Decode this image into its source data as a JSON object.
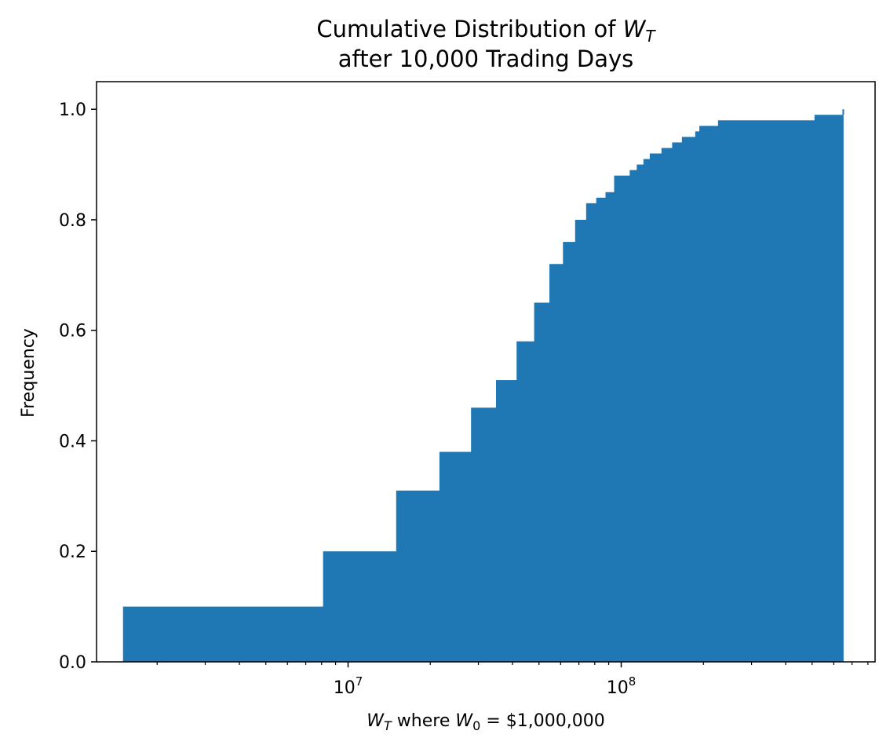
{
  "chart_data": {
    "type": "bar",
    "subtype": "cumulative-histogram",
    "title_parts": {
      "line1_text": "Cumulative Distribution of ",
      "line1_var": "W",
      "line1_sub": "T",
      "line2": "after 10,000 Trading Days"
    },
    "ylabel": "Frequency",
    "xlabel_parts": {
      "var": "W",
      "sub": "T",
      "mid": " where ",
      "var2": "W",
      "sub2": "0",
      "eq": " = $1,000,000"
    },
    "xscale": "log",
    "xlim": [
      1200000,
      850000000
    ],
    "ylim": [
      0,
      1.05
    ],
    "yticks": [
      "0.0",
      "0.2",
      "0.4",
      "0.6",
      "0.8",
      "1.0"
    ],
    "ytick_values": [
      0,
      0.2,
      0.4,
      0.6,
      0.8,
      1.0
    ],
    "xticks": [
      {
        "value": 10000000,
        "base": "10",
        "exp": "7"
      },
      {
        "value": 100000000,
        "base": "10",
        "exp": "8"
      }
    ],
    "bar_color": "#1f77b4",
    "grid": false,
    "bin_edges": [
      1500000,
      8100000,
      15000000,
      21600000,
      28200000,
      34800000,
      41400000,
      48000000,
      54600000,
      61200000,
      67800000,
      74400000,
      81000000,
      87600000,
      94200000,
      100800000,
      107400000,
      114000000,
      120600000,
      127200000,
      133800000,
      140400000,
      147000000,
      153600000,
      160200000,
      166800000,
      173400000,
      180000000,
      186600000,
      193200000,
      199800000,
      206400000,
      226200000,
      510000000,
      650000000
    ],
    "values": [
      0.1,
      0.2,
      0.31,
      0.38,
      0.46,
      0.51,
      0.58,
      0.65,
      0.72,
      0.76,
      0.8,
      0.83,
      0.84,
      0.85,
      0.88,
      0.88,
      0.89,
      0.9,
      0.91,
      0.92,
      0.92,
      0.93,
      0.93,
      0.94,
      0.94,
      0.95,
      0.95,
      0.95,
      0.96,
      0.97,
      0.97,
      0.97,
      0.98,
      0.99
    ],
    "final_edge_value": 1.0
  }
}
